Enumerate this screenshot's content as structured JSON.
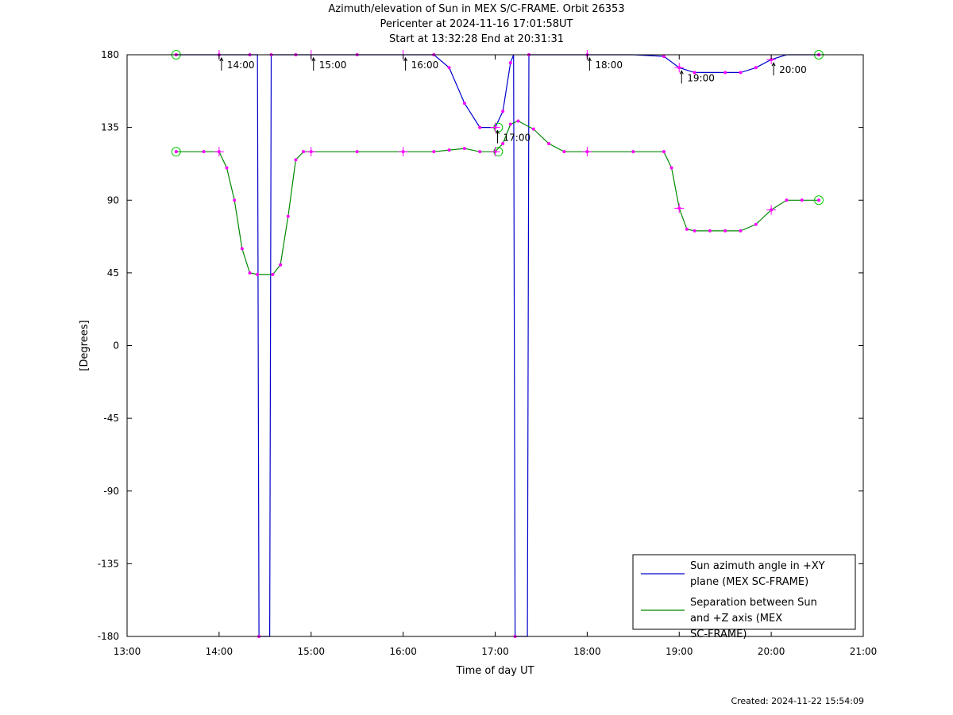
{
  "chart_data": {
    "type": "line",
    "title_lines": [
      "Azimuth/elevation of Sun in MEX S/C-FRAME.  Orbit 26353",
      "Pericenter at 2024-11-16 17:01:58UT",
      "Start at 13:32:28 End at 20:31:31"
    ],
    "xlabel": "Time of day UT",
    "ylabel": "[Degrees]",
    "xlim": [
      "13:00",
      "21:00"
    ],
    "ylim": [
      -180,
      180
    ],
    "x_ticks": [
      "13:00",
      "14:00",
      "15:00",
      "16:00",
      "17:00",
      "18:00",
      "19:00",
      "20:00",
      "21:00"
    ],
    "y_ticks": [
      180,
      135,
      90,
      45,
      0,
      -45,
      -90,
      -135,
      -180
    ],
    "grid": false,
    "legend_position": "bottom-right",
    "hour_annotations": [
      "14:00",
      "15:00",
      "16:00",
      "17:00",
      "18:00",
      "19:00",
      "20:00"
    ],
    "series": [
      {
        "name": "Sun azimuth angle in +XY plane (MEX SC-FRAME)",
        "color": "#0000cc",
        "points": [
          [
            "13:32",
            180
          ],
          [
            "13:50",
            180
          ],
          [
            "14:00",
            180
          ],
          [
            "14:10",
            180
          ],
          [
            "14:20",
            180
          ],
          [
            "14:25",
            180
          ],
          [
            "14:26",
            -180
          ],
          [
            "14:33",
            -180
          ],
          [
            "14:34",
            180
          ],
          [
            "14:40",
            180
          ],
          [
            "14:50",
            180
          ],
          [
            "15:00",
            180
          ],
          [
            "15:30",
            180
          ],
          [
            "16:00",
            180
          ],
          [
            "16:20",
            180
          ],
          [
            "16:30",
            172
          ],
          [
            "16:40",
            150
          ],
          [
            "16:50",
            135
          ],
          [
            "17:00",
            135
          ],
          [
            "17:05",
            145
          ],
          [
            "17:10",
            175
          ],
          [
            "17:12",
            180
          ],
          [
            "17:13",
            -180
          ],
          [
            "17:21",
            -180
          ],
          [
            "17:22",
            180
          ],
          [
            "17:30",
            180
          ],
          [
            "18:00",
            180
          ],
          [
            "18:30",
            180
          ],
          [
            "18:50",
            179
          ],
          [
            "19:00",
            172
          ],
          [
            "19:10",
            169
          ],
          [
            "19:30",
            169
          ],
          [
            "19:40",
            169
          ],
          [
            "19:50",
            172
          ],
          [
            "20:00",
            177
          ],
          [
            "20:10",
            180
          ],
          [
            "20:31",
            180
          ]
        ]
      },
      {
        "name": "Separation between Sun and +Z axis (MEX SC-FRAME)",
        "color": "#008800",
        "points": [
          [
            "13:32",
            120
          ],
          [
            "13:50",
            120
          ],
          [
            "14:00",
            120
          ],
          [
            "14:05",
            110
          ],
          [
            "14:10",
            90
          ],
          [
            "14:15",
            60
          ],
          [
            "14:20",
            45
          ],
          [
            "14:25",
            44
          ],
          [
            "14:35",
            44
          ],
          [
            "14:40",
            50
          ],
          [
            "14:45",
            80
          ],
          [
            "14:50",
            115
          ],
          [
            "14:55",
            120
          ],
          [
            "15:00",
            120
          ],
          [
            "15:30",
            120
          ],
          [
            "16:00",
            120
          ],
          [
            "16:20",
            120
          ],
          [
            "16:30",
            121
          ],
          [
            "16:40",
            122
          ],
          [
            "16:50",
            120
          ],
          [
            "17:00",
            120
          ],
          [
            "17:05",
            125
          ],
          [
            "17:10",
            137
          ],
          [
            "17:15",
            139
          ],
          [
            "17:25",
            134
          ],
          [
            "17:35",
            125
          ],
          [
            "17:45",
            120
          ],
          [
            "18:00",
            120
          ],
          [
            "18:30",
            120
          ],
          [
            "18:50",
            120
          ],
          [
            "18:55",
            110
          ],
          [
            "19:00",
            85
          ],
          [
            "19:05",
            72
          ],
          [
            "19:10",
            71
          ],
          [
            "19:20",
            71
          ],
          [
            "19:30",
            71
          ],
          [
            "19:40",
            71
          ],
          [
            "19:50",
            75
          ],
          [
            "20:00",
            84
          ],
          [
            "20:10",
            90
          ],
          [
            "20:20",
            90
          ],
          [
            "20:31",
            90
          ]
        ]
      }
    ],
    "markers": {
      "dot_color": "#ff00ff",
      "start_end_circle_color": "#00cc00"
    }
  },
  "footer": {
    "created": "Created: 2024-11-22 15:54:09"
  }
}
